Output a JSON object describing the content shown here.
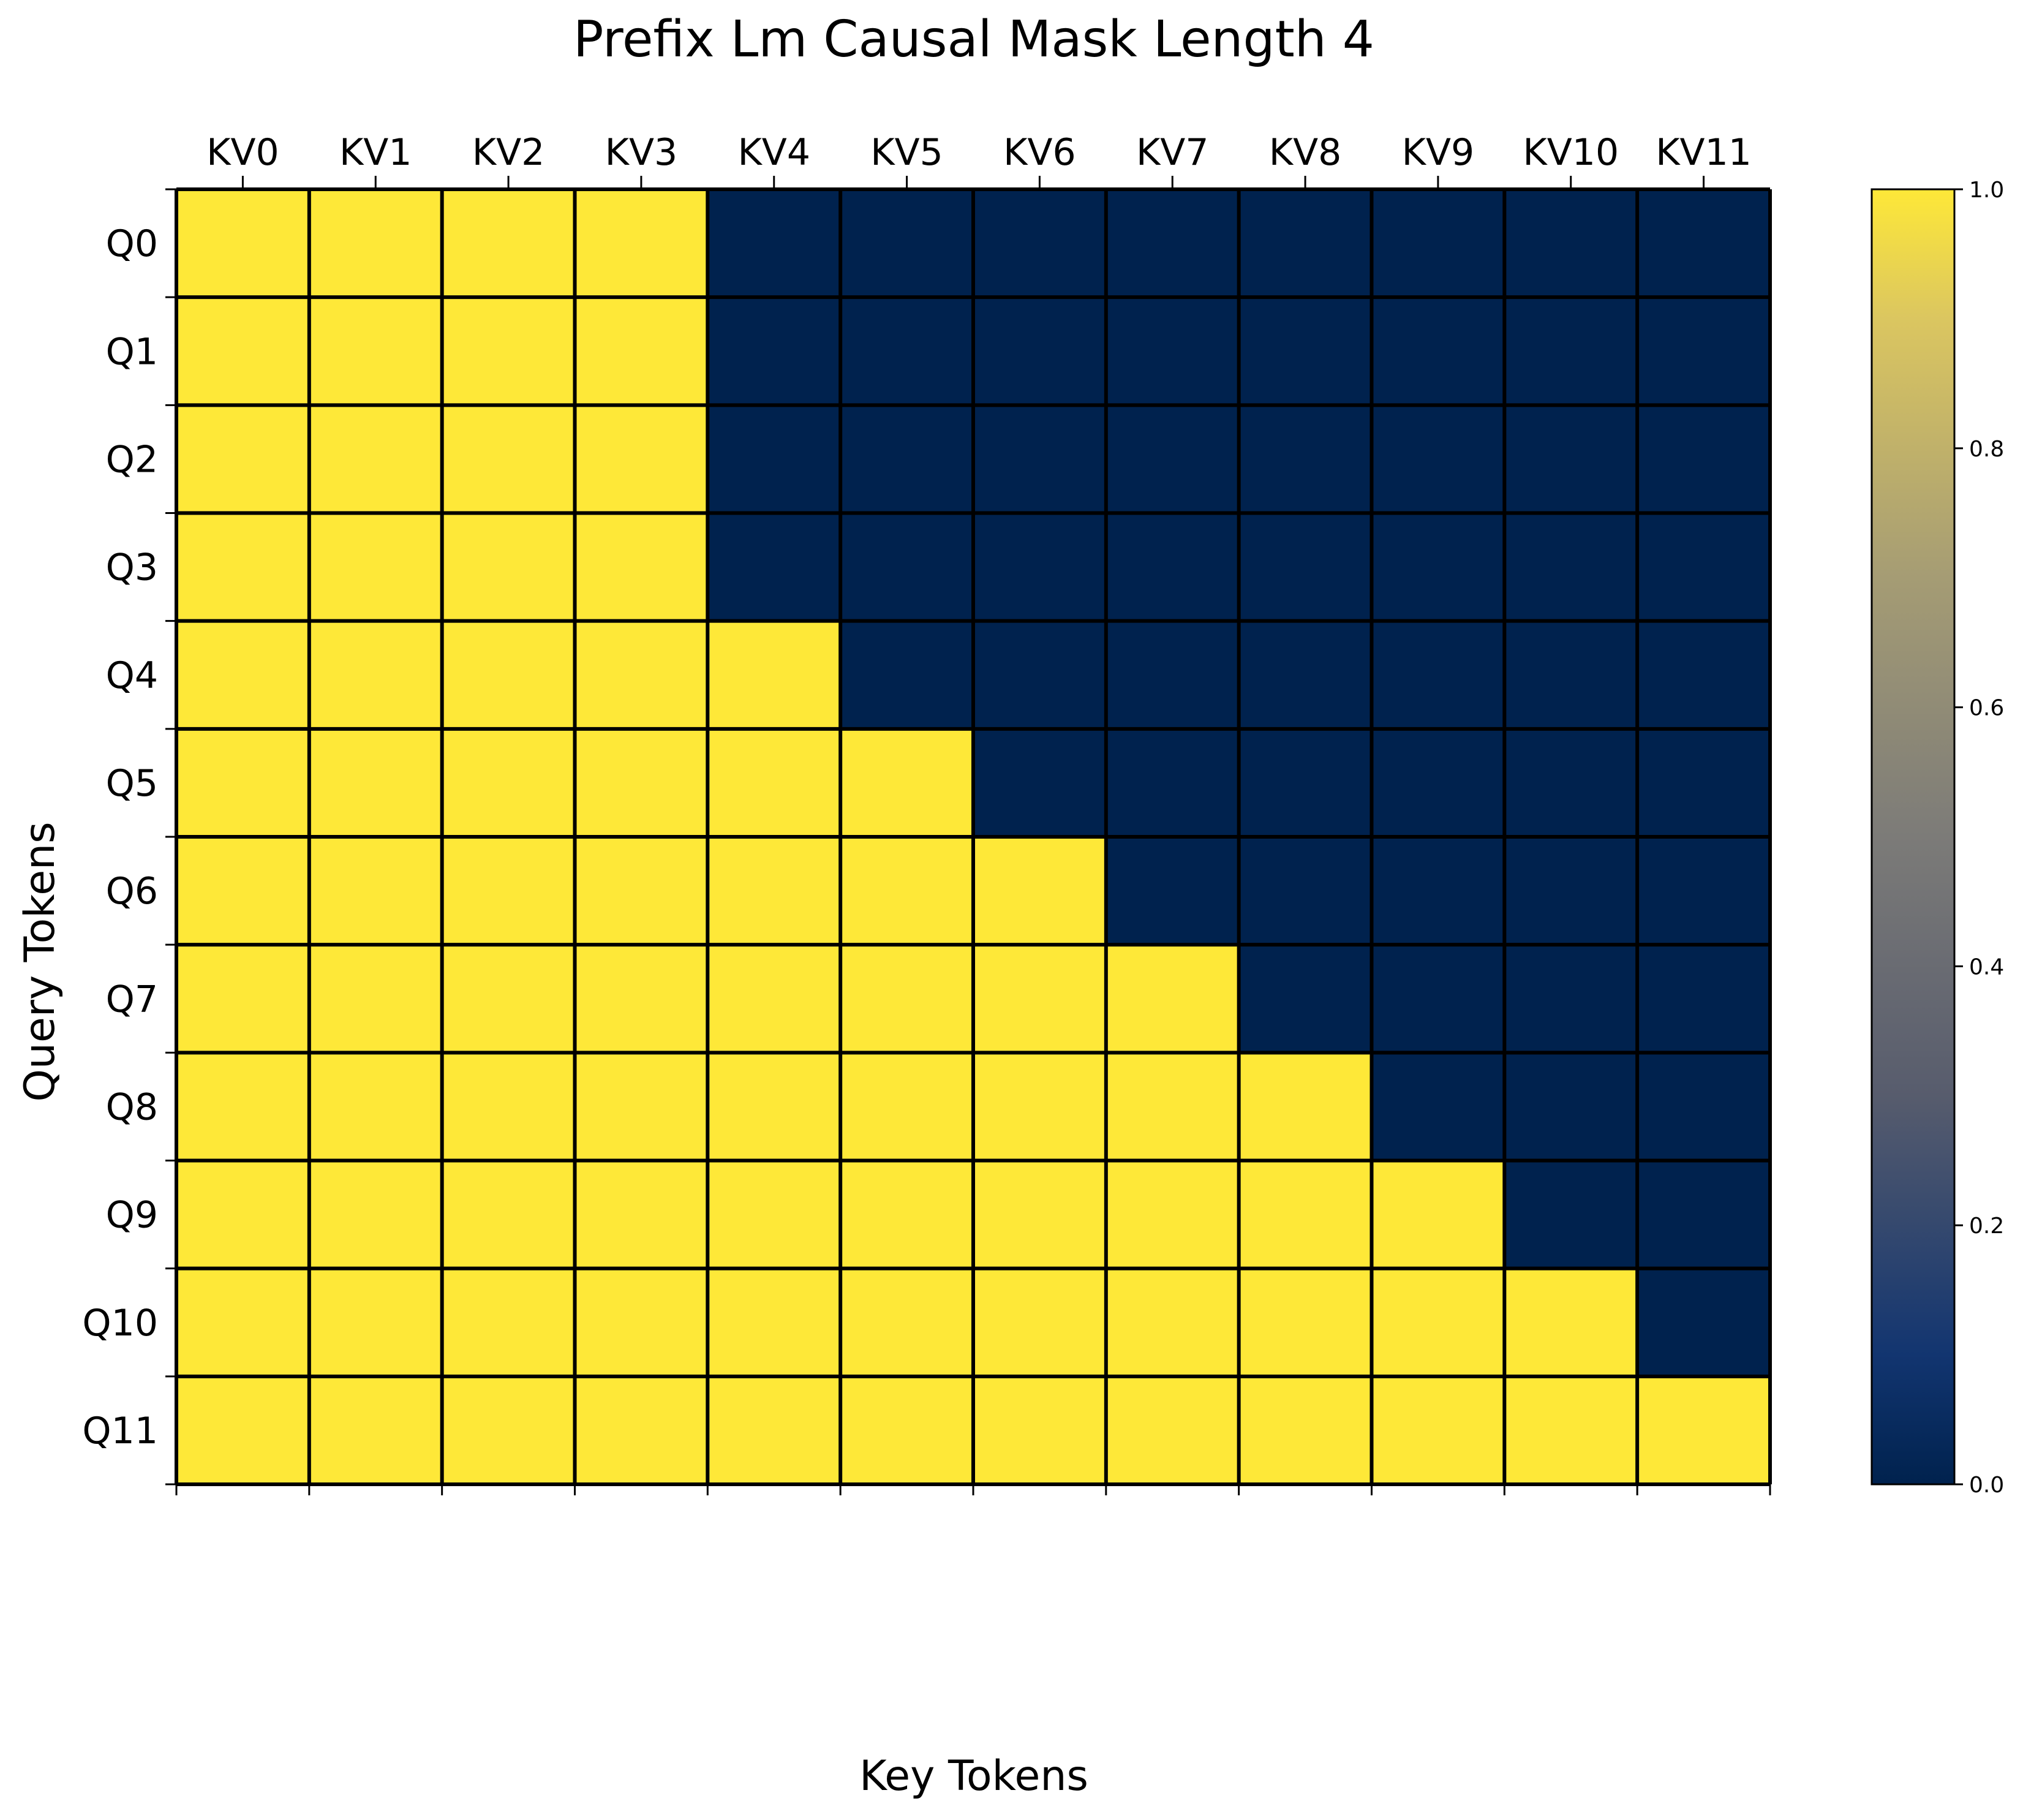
{
  "chart_data": {
    "type": "heatmap",
    "title": "Prefix Lm Causal Mask Length 4",
    "xlabel": "Key Tokens",
    "ylabel": "Query Tokens",
    "x_categories": [
      "KV0",
      "KV1",
      "KV2",
      "KV3",
      "KV4",
      "KV5",
      "KV6",
      "KV7",
      "KV8",
      "KV9",
      "KV10",
      "KV11"
    ],
    "y_categories": [
      "Q0",
      "Q1",
      "Q2",
      "Q3",
      "Q4",
      "Q5",
      "Q6",
      "Q7",
      "Q8",
      "Q9",
      "Q10",
      "Q11"
    ],
    "values": [
      [
        1,
        1,
        1,
        1,
        0,
        0,
        0,
        0,
        0,
        0,
        0,
        0
      ],
      [
        1,
        1,
        1,
        1,
        0,
        0,
        0,
        0,
        0,
        0,
        0,
        0
      ],
      [
        1,
        1,
        1,
        1,
        0,
        0,
        0,
        0,
        0,
        0,
        0,
        0
      ],
      [
        1,
        1,
        1,
        1,
        0,
        0,
        0,
        0,
        0,
        0,
        0,
        0
      ],
      [
        1,
        1,
        1,
        1,
        1,
        0,
        0,
        0,
        0,
        0,
        0,
        0
      ],
      [
        1,
        1,
        1,
        1,
        1,
        1,
        0,
        0,
        0,
        0,
        0,
        0
      ],
      [
        1,
        1,
        1,
        1,
        1,
        1,
        1,
        0,
        0,
        0,
        0,
        0
      ],
      [
        1,
        1,
        1,
        1,
        1,
        1,
        1,
        1,
        0,
        0,
        0,
        0
      ],
      [
        1,
        1,
        1,
        1,
        1,
        1,
        1,
        1,
        1,
        0,
        0,
        0
      ],
      [
        1,
        1,
        1,
        1,
        1,
        1,
        1,
        1,
        1,
        1,
        0,
        0
      ],
      [
        1,
        1,
        1,
        1,
        1,
        1,
        1,
        1,
        1,
        1,
        1,
        0
      ],
      [
        1,
        1,
        1,
        1,
        1,
        1,
        1,
        1,
        1,
        1,
        1,
        1
      ]
    ],
    "colormap": "cividis",
    "colors": {
      "low": "#00224e",
      "mid": "#7c7b78",
      "high": "#fee838"
    },
    "colorbar": {
      "range": [
        0,
        1
      ],
      "ticks": [
        "0.0",
        "0.2",
        "0.4",
        "0.6",
        "0.8",
        "1.0"
      ]
    },
    "x_ticks_position": "top",
    "grid": false,
    "legend": "none"
  }
}
